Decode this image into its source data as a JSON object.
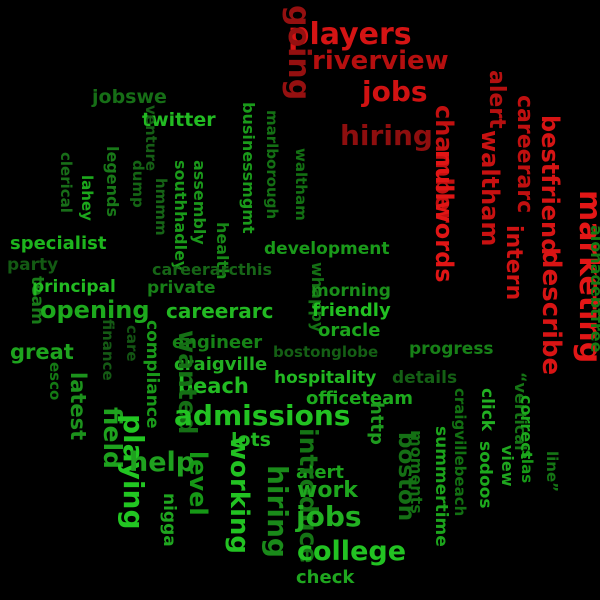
{
  "background": "#000000",
  "palette": {
    "bright_red": "#dd1111",
    "mid_red": "#b30f0f",
    "dark_red": "#8a0e0e",
    "bright_green": "#22cc22",
    "mid_green": "#1a9a1a",
    "dark_green": "#127012",
    "deep_green": "#0d5a0d"
  },
  "words": [
    {
      "text": "players",
      "color": "#d41414"
    },
    {
      "text": "riverview",
      "color": "#b50f0f"
    },
    {
      "text": "going",
      "color": "#951010"
    },
    {
      "text": "jobs",
      "color": "#d01212"
    },
    {
      "text": "hiring",
      "color": "#8e0e0e"
    },
    {
      "text": "chamber",
      "color": "#c21010"
    },
    {
      "text": "alert",
      "color": "#b51010"
    },
    {
      "text": "waltham",
      "color": "#c81111"
    },
    {
      "text": "careerarc",
      "color": "#c01010"
    },
    {
      "text": "bestfriend",
      "color": "#d61414"
    },
    {
      "text": "nullwords",
      "color": "#e01515"
    },
    {
      "text": "intern",
      "color": "#d01313"
    },
    {
      "text": "describe",
      "color": "#d81414"
    },
    {
      "text": "marketing",
      "color": "#e21616"
    },
    {
      "text": "alohadebtfree",
      "color": "#147a14"
    },
    {
      "text": "jobswe",
      "color": "#166e16"
    },
    {
      "text": "twitter",
      "color": "#22bb22"
    },
    {
      "text": "venture",
      "color": "#155e15"
    },
    {
      "text": "businessmgmt",
      "color": "#1a9a1a"
    },
    {
      "text": "marlborough",
      "color": "#147014"
    },
    {
      "text": "waltham",
      "color": "#137013"
    },
    {
      "text": "clerical",
      "color": "#186e18"
    },
    {
      "text": "legends",
      "color": "#187818"
    },
    {
      "text": "lahey",
      "color": "#1ca81c"
    },
    {
      "text": "dump",
      "color": "#146414"
    },
    {
      "text": "hmmm",
      "color": "#166416"
    },
    {
      "text": "southhadley",
      "color": "#1a9a1a"
    },
    {
      "text": "assembly",
      "color": "#1a961a"
    },
    {
      "text": "health",
      "color": "#178817"
    },
    {
      "text": "specialist",
      "color": "#1db51d"
    },
    {
      "text": "party",
      "color": "#135a13"
    },
    {
      "text": "development",
      "color": "#1a9a1a"
    },
    {
      "text": "careerarcthis",
      "color": "#166416"
    },
    {
      "text": "whappy",
      "color": "#147014"
    },
    {
      "text": "team",
      "color": "#187a18"
    },
    {
      "text": "principal",
      "color": "#22bb22"
    },
    {
      "text": "private",
      "color": "#178017"
    },
    {
      "text": "morning",
      "color": "#1a8e1a"
    },
    {
      "text": "opening",
      "color": "#1da91d"
    },
    {
      "text": "careerarc",
      "color": "#22b822"
    },
    {
      "text": "friendly",
      "color": "#22c022"
    },
    {
      "text": "oracle",
      "color": "#1ca41c"
    },
    {
      "text": "engineer",
      "color": "#168216"
    },
    {
      "text": "bostonglobe",
      "color": "#145f14"
    },
    {
      "text": "progress",
      "color": "#178017"
    },
    {
      "text": "finance",
      "color": "#145a14"
    },
    {
      "text": "care",
      "color": "#135513"
    },
    {
      "text": "great",
      "color": "#1ea41e"
    },
    {
      "text": "craigville",
      "color": "#22b022"
    },
    {
      "text": "hospitality",
      "color": "#22b822"
    },
    {
      "text": "details",
      "color": "#145f14"
    },
    {
      "text": "beach",
      "color": "#22bb22"
    },
    {
      "text": "wanted",
      "color": "#157015"
    },
    {
      "text": "esco",
      "color": "#147a14"
    },
    {
      "text": "latest",
      "color": "#1c921c"
    },
    {
      "text": "compliance",
      "color": "#1a9a1a"
    },
    {
      "text": "officeteam",
      "color": "#1da91d"
    },
    {
      "text": "craigvillebeach",
      "color": "#127012"
    },
    {
      "text": "admissions",
      "color": "#22c222"
    },
    {
      "text": "field",
      "color": "#1ea21e"
    },
    {
      "text": "lots",
      "color": "#22b622"
    },
    {
      "text": "http",
      "color": "#1e9a1e"
    },
    {
      "text": "click",
      "color": "#22b022"
    },
    {
      "text": "playing",
      "color": "#22c622"
    },
    {
      "text": "help",
      "color": "#1fa01f"
    },
    {
      "text": "boston",
      "color": "#157015"
    },
    {
      "text": "alert",
      "color": "#1ca41c"
    },
    {
      "text": "level",
      "color": "#169816"
    },
    {
      "text": "introduce",
      "color": "#157515"
    },
    {
      "text": "work",
      "color": "#1ea61e"
    },
    {
      "text": "moments",
      "color": "#137013"
    },
    {
      "text": "summertime",
      "color": "#1ca41c"
    },
    {
      "text": "sodoos",
      "color": "#1da91d"
    },
    {
      "text": "view",
      "color": "#1fa61f"
    },
    {
      "text": "“vertical",
      "color": "#157515"
    },
    {
      "text": "slas",
      "color": "#179a17"
    },
    {
      "text": "correct",
      "color": "#1da91d"
    },
    {
      "text": "line”",
      "color": "#157515"
    },
    {
      "text": "nigga",
      "color": "#1fa61f"
    },
    {
      "text": "working",
      "color": "#22c222"
    },
    {
      "text": "hiring",
      "color": "#1a8a1a"
    },
    {
      "text": "jobs",
      "color": "#22b022"
    },
    {
      "text": "college",
      "color": "#22c222"
    },
    {
      "text": "check",
      "color": "#1fa61f"
    }
  ]
}
